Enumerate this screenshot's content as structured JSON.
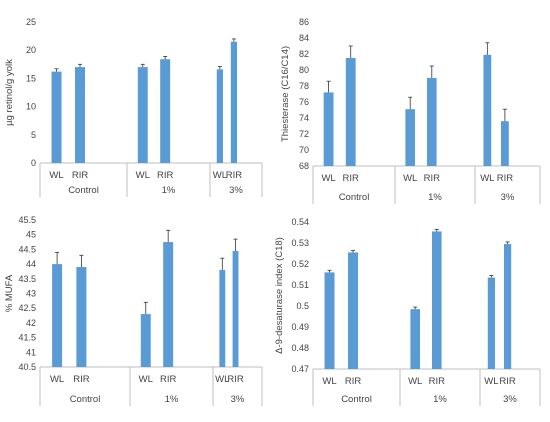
{
  "colors": {
    "bar": "#5b9bd5",
    "axis": "#bfbfbf",
    "text": "#444444",
    "error": "#333333"
  },
  "chart_data": [
    {
      "type": "bar",
      "ylabel": "µg retinol/g yolk",
      "ylim": [
        0,
        25
      ],
      "yticks": [
        "0",
        "5",
        "10",
        "15",
        "20",
        "25"
      ],
      "groups": [
        {
          "label": "Control",
          "bars": [
            {
              "label": "WL",
              "value": 16.2,
              "error": 0.5
            },
            {
              "label": "RIR",
              "value": 17.0,
              "error": 0.5
            }
          ]
        },
        {
          "label": "1%",
          "bars": [
            {
              "label": "WL",
              "value": 17.0,
              "error": 0.5
            },
            {
              "label": "RIR",
              "value": 18.4,
              "error": 0.5
            }
          ]
        },
        {
          "label": "3%",
          "bars": [
            {
              "label": "WL",
              "value": 16.6,
              "error": 0.5
            },
            {
              "label": "RIR",
              "value": 21.5,
              "error": 0.5
            }
          ]
        }
      ]
    },
    {
      "type": "bar",
      "ylabel": "Thiesterase (C16/C14)",
      "ylim": [
        68,
        86
      ],
      "yticks": [
        "68",
        "70",
        "72",
        "74",
        "76",
        "78",
        "80",
        "82",
        "84",
        "86"
      ],
      "groups": [
        {
          "label": "Control",
          "bars": [
            {
              "label": "WL",
              "value": 77.2,
              "error": 1.4
            },
            {
              "label": "RIR",
              "value": 81.5,
              "error": 1.5
            }
          ]
        },
        {
          "label": "1%",
          "bars": [
            {
              "label": "WL",
              "value": 75.1,
              "error": 1.5
            },
            {
              "label": "RIR",
              "value": 79.0,
              "error": 1.5
            }
          ]
        },
        {
          "label": "3%",
          "bars": [
            {
              "label": "WL",
              "value": 81.9,
              "error": 1.5
            },
            {
              "label": "RIR",
              "value": 73.6,
              "error": 1.5
            }
          ]
        }
      ]
    },
    {
      "type": "bar",
      "ylabel": "% MUFA",
      "ylim": [
        40.5,
        45.5
      ],
      "yticks": [
        "40.5",
        "41",
        "41.5",
        "42",
        "42.5",
        "43",
        "43.5",
        "44",
        "44.5",
        "45",
        "45.5"
      ],
      "groups": [
        {
          "label": "Control",
          "bars": [
            {
              "label": "WL",
              "value": 44.0,
              "error": 0.4
            },
            {
              "label": "RIR",
              "value": 43.9,
              "error": 0.4
            }
          ]
        },
        {
          "label": "1%",
          "bars": [
            {
              "label": "WL",
              "value": 42.3,
              "error": 0.4
            },
            {
              "label": "RIR",
              "value": 44.75,
              "error": 0.4
            }
          ]
        },
        {
          "label": "3%",
          "bars": [
            {
              "label": "WL",
              "value": 43.8,
              "error": 0.4
            },
            {
              "label": "RIR",
              "value": 44.45,
              "error": 0.4
            }
          ]
        }
      ]
    },
    {
      "type": "bar",
      "ylabel": "Δ-9-desaturase index (C18)",
      "ylim": [
        0.47,
        0.54
      ],
      "yticks": [
        "0.47",
        "0.48",
        "0.49",
        "0.5",
        "0.51",
        "0.52",
        "0.53",
        "0.54"
      ],
      "groups": [
        {
          "label": "Control",
          "bars": [
            {
              "label": "WL",
              "value": 0.516,
              "error": 0.001
            },
            {
              "label": "RIR",
              "value": 0.5255,
              "error": 0.001
            }
          ]
        },
        {
          "label": "1%",
          "bars": [
            {
              "label": "WL",
              "value": 0.4985,
              "error": 0.001
            },
            {
              "label": "RIR",
              "value": 0.5355,
              "error": 0.001
            }
          ]
        },
        {
          "label": "3%",
          "bars": [
            {
              "label": "WL",
              "value": 0.5135,
              "error": 0.001
            },
            {
              "label": "RIR",
              "value": 0.5295,
              "error": 0.001
            }
          ]
        }
      ]
    }
  ]
}
